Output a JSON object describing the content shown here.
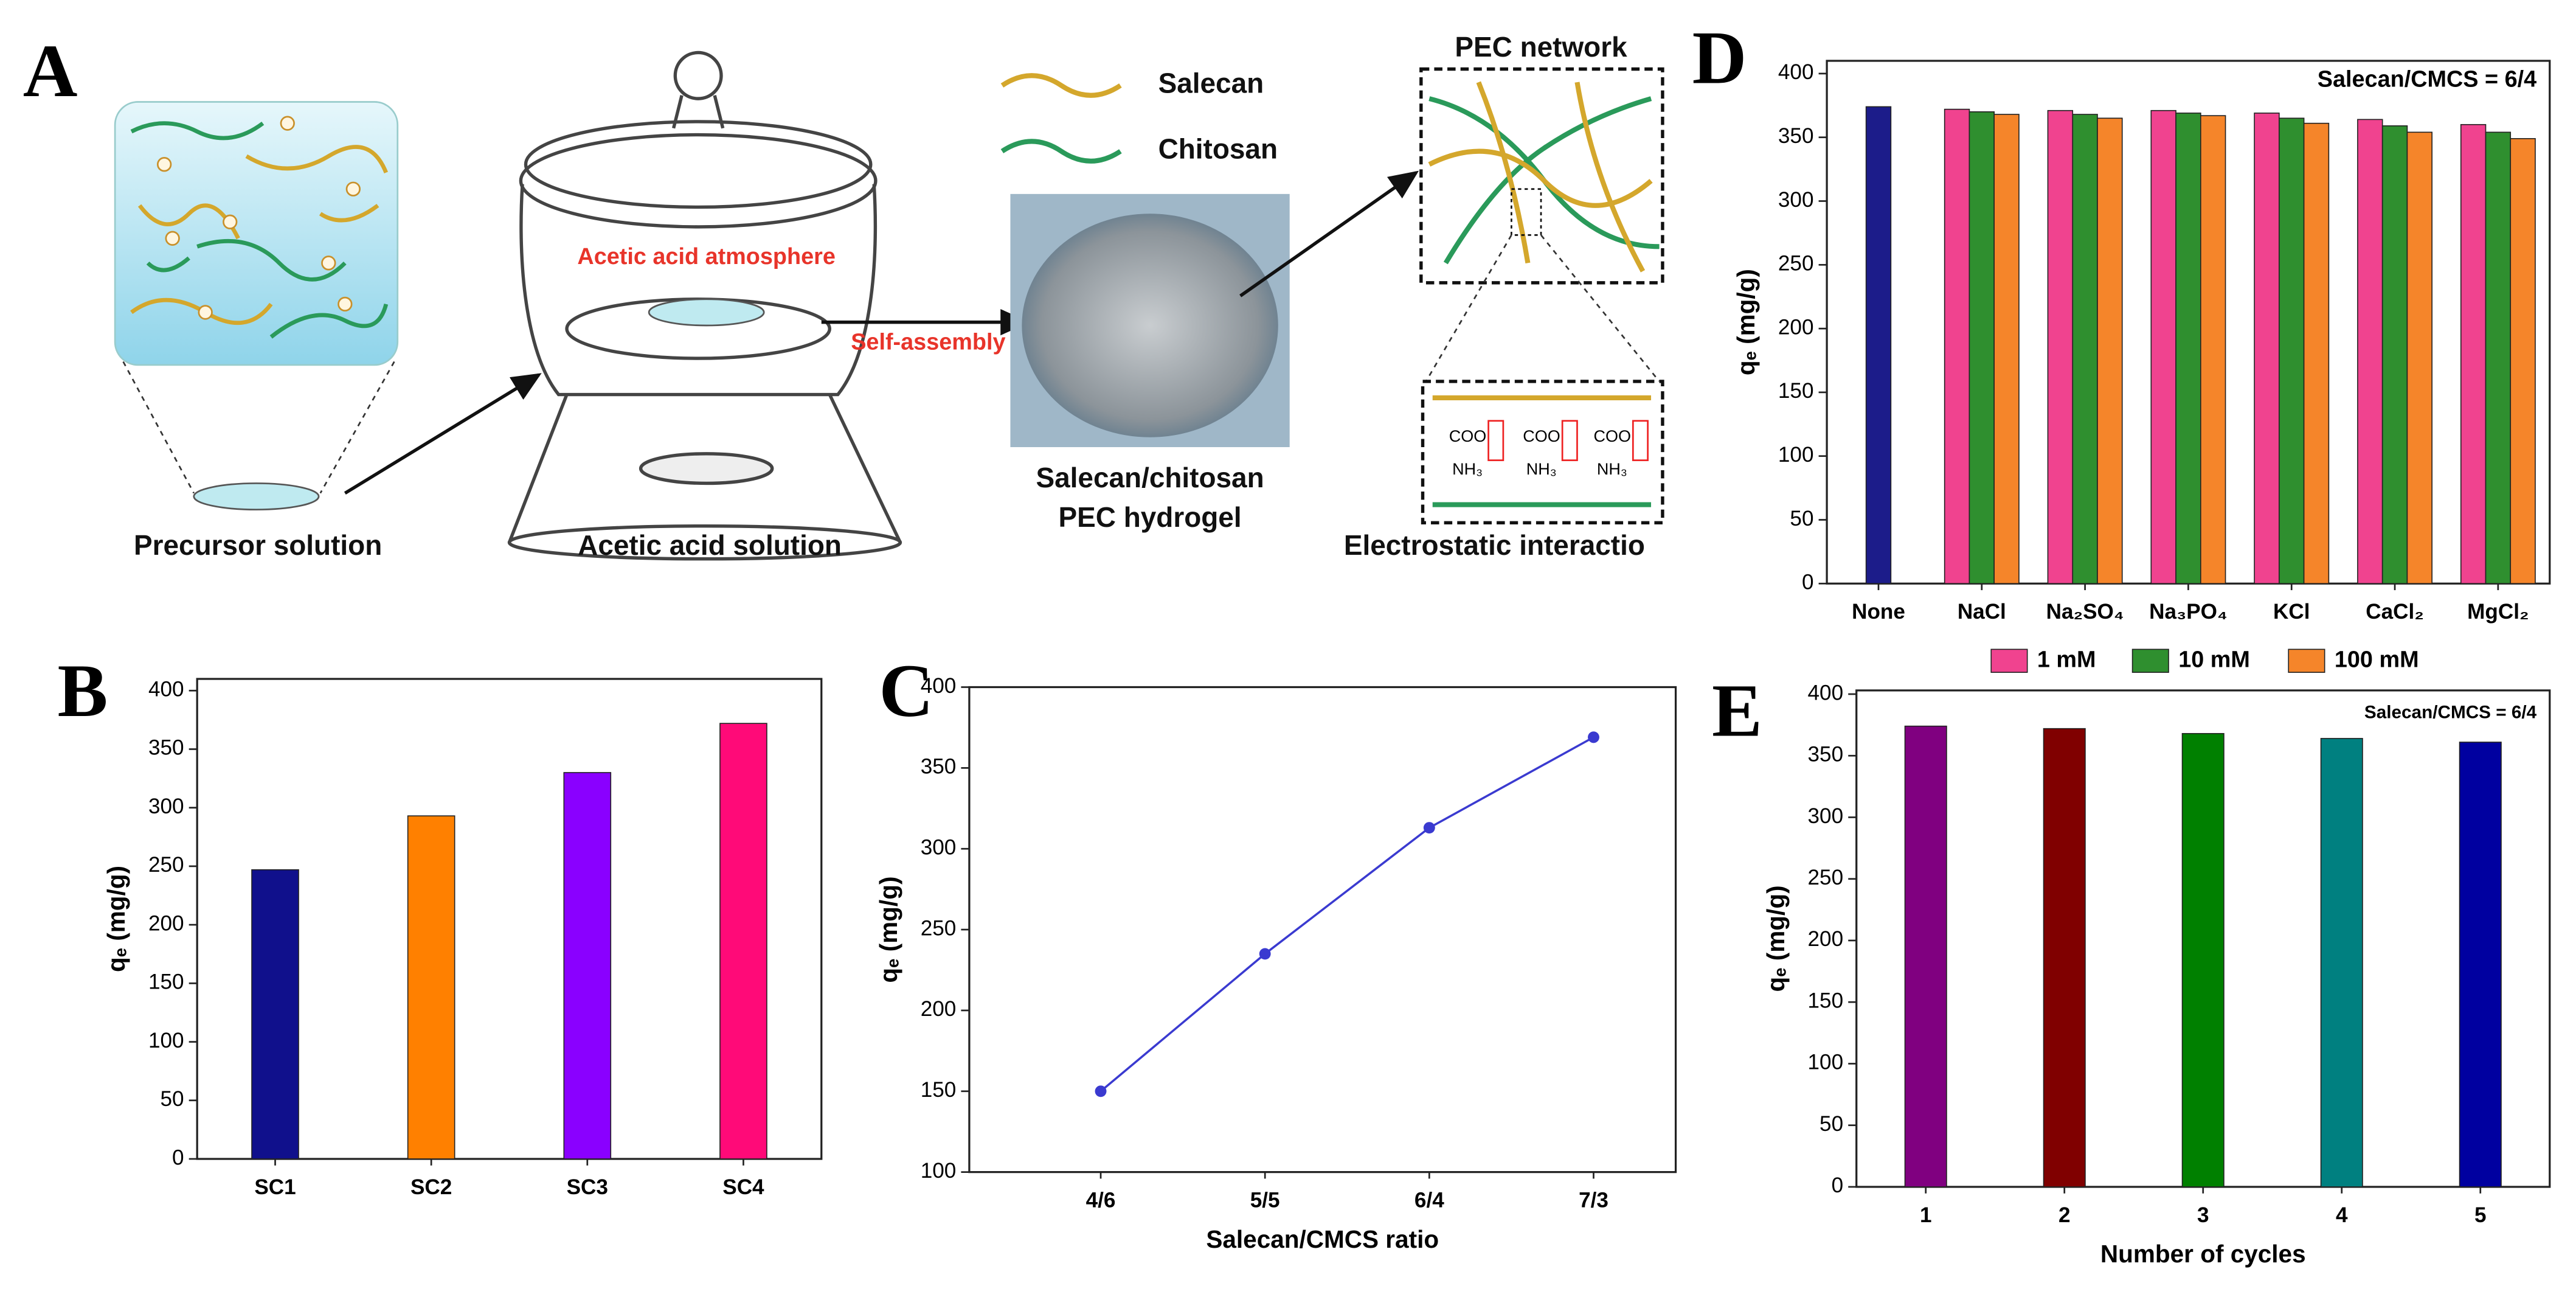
{
  "diagram": {
    "panel": "A",
    "salecan": "Salecan",
    "chitosan": "Chitosan",
    "network": "PEC network",
    "atmosphere": "Acetic acid atmosphere",
    "assembly": "Self-assembly",
    "precursor": "Precursor solution",
    "acid_solution": "Acetic acid solution",
    "hydrogel_line1": "Salecan/chitosan",
    "hydrogel_line2": "PEC hydrogel",
    "interaction": "Electrostatic interactio",
    "carboxyl": "COO",
    "amine": "NH₃"
  },
  "chart_data": [
    {
      "type": "grouped_bar",
      "panel": "D",
      "annotation": "Salecan/CMCS = 6/4",
      "ylabel": "qₑ (mg/g)",
      "categories": [
        "None",
        "NaCl",
        "Na₂SO₄",
        "Na₃PO₄",
        "KCl",
        "CaCl₂",
        "MgCl₂"
      ],
      "control_value": 374,
      "control_color": "#1c1c8a",
      "series": [
        {
          "name": "1 mM",
          "color": "#f0438f",
          "values": [
            null,
            372,
            371,
            371,
            369,
            364,
            360
          ]
        },
        {
          "name": "10 mM",
          "color": "#2f8f2f",
          "values": [
            null,
            370,
            368,
            369,
            365,
            359,
            354
          ]
        },
        {
          "name": "100 mM",
          "color": "#f5852a",
          "values": [
            null,
            368,
            365,
            367,
            361,
            354,
            349
          ]
        }
      ],
      "ylim": [
        0,
        410
      ],
      "yticks": [
        0,
        50,
        100,
        150,
        200,
        250,
        300,
        350,
        400
      ],
      "legend": "bottom"
    },
    {
      "type": "bar",
      "panel": "B",
      "ylabel": "qₑ (mg/g)",
      "categories": [
        "SC1",
        "SC2",
        "SC3",
        "SC4"
      ],
      "values": [
        247,
        293,
        330,
        372
      ],
      "colors": [
        "#10108c",
        "#ff8000",
        "#8a00ff",
        "#ff0a78"
      ],
      "ylim": [
        0,
        410
      ],
      "yticks": [
        0,
        50,
        100,
        150,
        200,
        250,
        300,
        350,
        400
      ]
    },
    {
      "type": "line",
      "panel": "C",
      "ylabel": "qₑ (mg/g)",
      "xlabel": "Salecan/CMCS ratio",
      "categories": [
        "4/6",
        "5/5",
        "6/4",
        "7/3"
      ],
      "values": [
        150,
        235,
        313,
        369
      ],
      "color": "#3a3ad0",
      "ylim": [
        100,
        400
      ],
      "yticks": [
        100,
        150,
        200,
        250,
        300,
        350,
        400
      ]
    },
    {
      "type": "bar",
      "panel": "E",
      "ylabel": "qₑ (mg/g)",
      "xlabel": "Number of cycles",
      "annotation": "Salecan/CMCS = 6/4",
      "categories": [
        "1",
        "2",
        "3",
        "4",
        "5"
      ],
      "values": [
        374,
        372,
        368,
        364,
        361
      ],
      "colors": [
        "#800080",
        "#800000",
        "#008000",
        "#008080",
        "#0000a0"
      ],
      "ylim": [
        0,
        403
      ],
      "yticks": [
        0,
        50,
        100,
        150,
        200,
        250,
        300,
        350,
        400
      ]
    }
  ]
}
